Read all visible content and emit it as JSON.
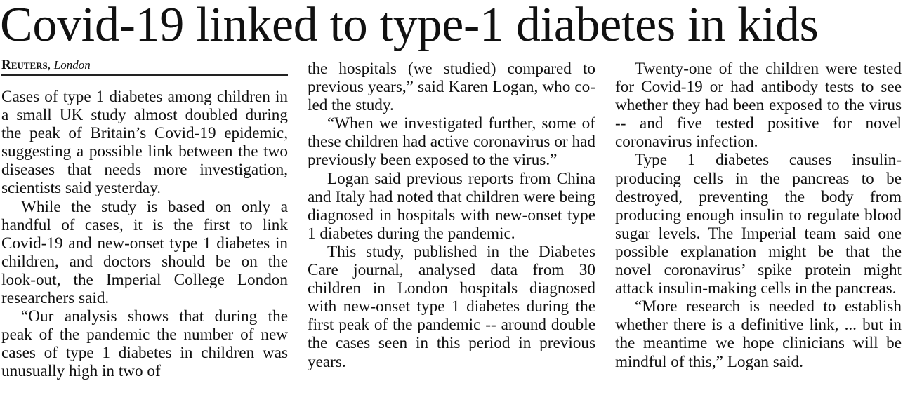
{
  "article": {
    "headline": "Covid-19 linked to type-1 diabetes in kids",
    "dateline": {
      "agency": "Reuters",
      "separator": ", ",
      "place": "London"
    },
    "paragraphs": [
      "Cases of type 1 diabetes among children in a small UK study almost doubled during the peak of Britain’s Covid-19 epidemic, suggesting a possible link between the two diseases that needs more investigation, scientists said yesterday.",
      "While the study is based on only a handful of cases, it is the first to link Covid-19 and new-onset type 1 diabetes in children, and doctors should be on the look-out, the Imperial College London researchers said.",
      "“Our analysis shows that during the peak of the pandemic the number of new cases of type 1 diabetes in children was unusually high in two of",
      "the hospitals (we studied) compared to previous years,” said Karen Logan, who co-led the study.",
      "“When we investigated further, some of these children had active coronavirus or had previously been exposed to the virus.”",
      "Logan said previous reports from China and Italy had noted that children were being diagnosed in hospitals with new-onset type 1 diabetes during the pandemic.",
      "This study, published in the Diabetes Care journal, analysed data from 30 children in London hospitals diagnosed with new-onset type 1 diabetes during the first peak of the pandemic -- around double the cases seen in this period in previous years.",
      "Twenty-one of the children were tested for Covid-19 or had antibody tests to see whether they had been exposed to the virus -- and five tested positive for novel coronavirus infection.",
      "Type 1 diabetes causes insulin-producing cells in the pancreas to be destroyed, preventing the body from producing enough insulin to regulate blood sugar levels. The Imperial team said one possible explanation might be that the novel coronavirus’ spike protein might attack insulin-making cells in the pancreas.",
      "“More research is needed to establish whether there is a definitive link, ... but in the meantime we hope clinicians will be mindful of this,” Logan said."
    ]
  }
}
